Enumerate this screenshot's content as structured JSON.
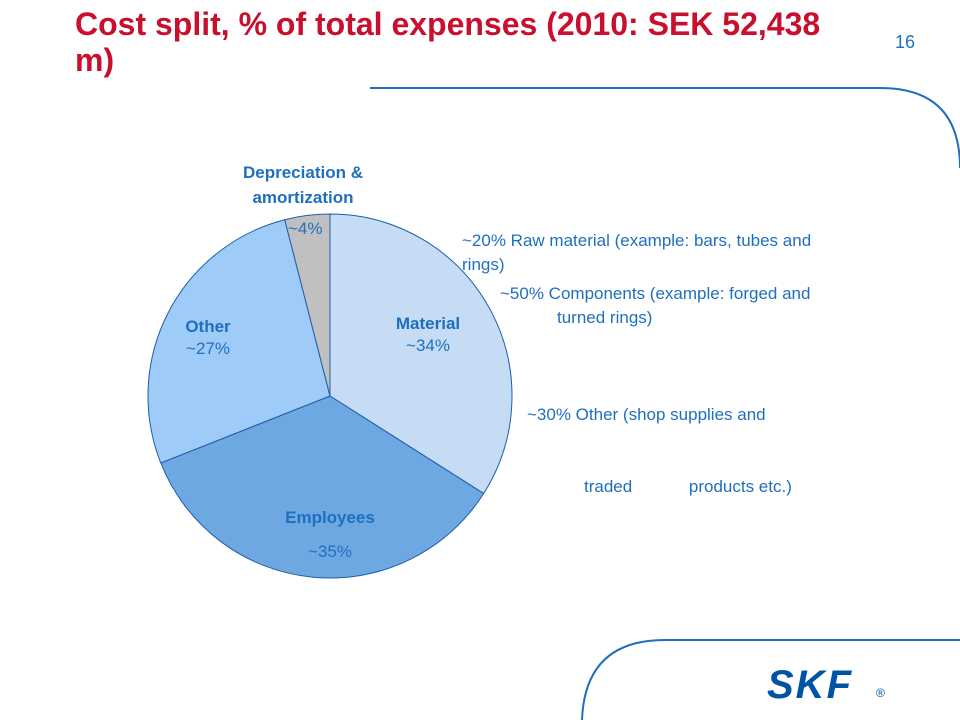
{
  "header": {
    "title": "Cost split, % of total expenses (2010: SEK 52,438 m)",
    "page_number": "16"
  },
  "colors": {
    "title": "#c8102e",
    "text": "#1f6fbf",
    "decor_line": "#1f6fbf",
    "logo": "#0054a6"
  },
  "chart_data": {
    "type": "pie",
    "title": "",
    "slices": [
      {
        "name": "Material",
        "value": 34,
        "label": "~34%",
        "color": "#c5dcf4"
      },
      {
        "name": "Employees",
        "value": 35,
        "label": "~35%",
        "color": "#6ea8e2"
      },
      {
        "name": "Other",
        "value": 27,
        "label": "~27%",
        "color": "#9fcbf8"
      },
      {
        "name": "Depreciation & amortization",
        "value": 4,
        "label": "~4%",
        "color": "#c0c0c0"
      }
    ],
    "start": "12 o'clock",
    "direction": "clockwise"
  },
  "material_breakdown": [
    {
      "lines": [
        "~20% Raw material (example: bars, tubes and",
        "rings)"
      ]
    },
    {
      "lines": [
        "~50% Components (example: forged and",
        "turned rings)"
      ]
    },
    {
      "lines": [
        "~30% Other (shop supplies and",
        "traded            products etc.)"
      ]
    }
  ],
  "logo": {
    "text": "SKF",
    "registered": "®"
  }
}
